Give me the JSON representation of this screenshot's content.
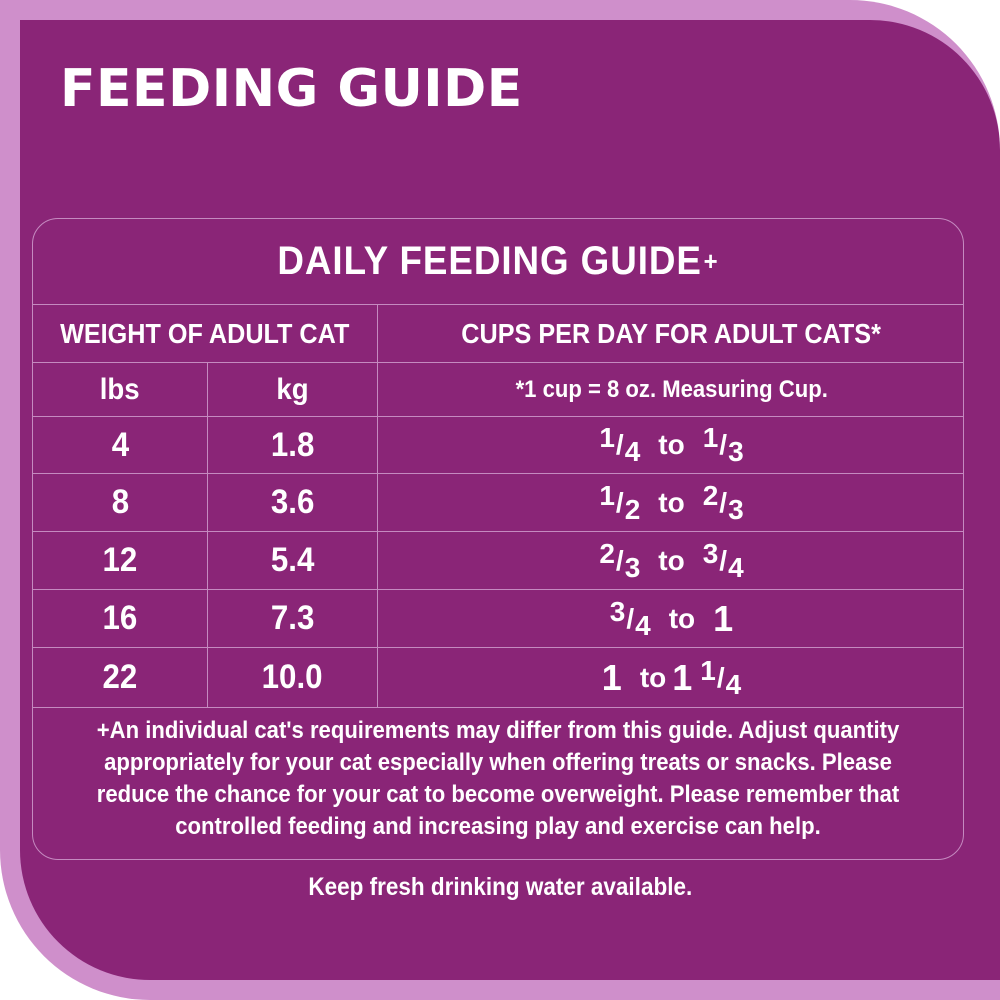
{
  "title": "FEEDING GUIDE",
  "table": {
    "title": "DAILY FEEDING GUIDE",
    "title_mark": "+",
    "weight_header": "WEIGHT OF ADULT CAT",
    "cups_header": "CUPS PER DAY FOR ADULT CATS*",
    "lbs_label": "lbs",
    "kg_label": "kg",
    "cup_note": "*1 cup = 8 oz. Measuring Cup.",
    "to_label": "to",
    "rows": [
      {
        "lbs": "4",
        "kg": "1.8",
        "from_whole": "",
        "from_num": "1",
        "from_den": "4",
        "to_whole": "",
        "to_num": "1",
        "to_den": "3"
      },
      {
        "lbs": "8",
        "kg": "3.6",
        "from_whole": "",
        "from_num": "1",
        "from_den": "2",
        "to_whole": "",
        "to_num": "2",
        "to_den": "3"
      },
      {
        "lbs": "12",
        "kg": "5.4",
        "from_whole": "",
        "from_num": "2",
        "from_den": "3",
        "to_whole": "",
        "to_num": "3",
        "to_den": "4"
      },
      {
        "lbs": "16",
        "kg": "7.3",
        "from_whole": "",
        "from_num": "3",
        "from_den": "4",
        "to_whole": "1",
        "to_num": "",
        "to_den": ""
      },
      {
        "lbs": "22",
        "kg": "10.0",
        "from_whole": "1",
        "from_num": "",
        "from_den": "",
        "to_whole": "1",
        "to_num": "1",
        "to_den": "4"
      }
    ]
  },
  "footnote": [
    "+An individual cat's requirements may differ from this guide.  Adjust quantity",
    "appropriately for your cat especially when offering treats or snacks.  Please",
    "reduce the chance for your cat to become overweight. Please remember that",
    "controlled feeding and increasing play and exercise can help."
  ],
  "water_note": "Keep fresh drinking water available.",
  "colors": {
    "panel": "#8a2577",
    "frame": "#cf8fcb",
    "lines": "#c58ac0",
    "text": "#ffffff"
  }
}
